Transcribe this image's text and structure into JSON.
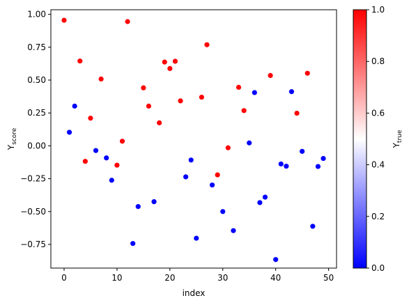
{
  "chart_data": {
    "type": "scatter",
    "xlabel": "index",
    "ylabel": "Y",
    "ylabel_subscript": "score",
    "colorbar_label": "Y",
    "colorbar_label_subscript": "true",
    "xlim": [
      -2.5,
      51.5
    ],
    "ylim": [
      -0.93,
      1.035
    ],
    "xticks": [
      0,
      10,
      20,
      30,
      40,
      50
    ],
    "yticks": [
      -0.75,
      -0.5,
      -0.25,
      0.0,
      0.25,
      0.5,
      0.75,
      1.0
    ],
    "ytick_labels": [
      "−0.75",
      "−0.50",
      "−0.25",
      "0.00",
      "0.25",
      "0.50",
      "0.75",
      "1.00"
    ],
    "colorbar_ticks": [
      0.0,
      0.2,
      0.4,
      0.6,
      0.8,
      1.0
    ],
    "colorbar_tick_labels": [
      "0.0",
      "0.2",
      "0.4",
      "0.6",
      "0.8",
      "1.0"
    ],
    "colormap": [
      "#0000ff",
      "#ffffff",
      "#ff0000"
    ],
    "colors": {
      "class0": "#0000ff",
      "class1": "#ff0000"
    },
    "grid": false,
    "points": [
      {
        "x": 0,
        "y": 0.955,
        "c": 1
      },
      {
        "x": 1,
        "y": 0.103,
        "c": 0
      },
      {
        "x": 2,
        "y": 0.302,
        "c": 0
      },
      {
        "x": 3,
        "y": 0.645,
        "c": 1
      },
      {
        "x": 4,
        "y": -0.118,
        "c": 1
      },
      {
        "x": 5,
        "y": 0.21,
        "c": 1
      },
      {
        "x": 6,
        "y": -0.036,
        "c": 0
      },
      {
        "x": 7,
        "y": 0.508,
        "c": 1
      },
      {
        "x": 8,
        "y": -0.092,
        "c": 0
      },
      {
        "x": 9,
        "y": -0.262,
        "c": 0
      },
      {
        "x": 10,
        "y": -0.147,
        "c": 1
      },
      {
        "x": 11,
        "y": 0.035,
        "c": 1
      },
      {
        "x": 12,
        "y": 0.945,
        "c": 1
      },
      {
        "x": 13,
        "y": -0.743,
        "c": 0
      },
      {
        "x": 14,
        "y": -0.462,
        "c": 0
      },
      {
        "x": 15,
        "y": 0.441,
        "c": 1
      },
      {
        "x": 16,
        "y": 0.302,
        "c": 1
      },
      {
        "x": 17,
        "y": -0.425,
        "c": 0
      },
      {
        "x": 18,
        "y": 0.175,
        "c": 1
      },
      {
        "x": 19,
        "y": 0.637,
        "c": 1
      },
      {
        "x": 20,
        "y": 0.588,
        "c": 1
      },
      {
        "x": 21,
        "y": 0.643,
        "c": 1
      },
      {
        "x": 22,
        "y": 0.342,
        "c": 1
      },
      {
        "x": 23,
        "y": -0.236,
        "c": 0
      },
      {
        "x": 24,
        "y": -0.108,
        "c": 0
      },
      {
        "x": 25,
        "y": -0.703,
        "c": 0
      },
      {
        "x": 26,
        "y": 0.37,
        "c": 1
      },
      {
        "x": 27,
        "y": 0.769,
        "c": 1
      },
      {
        "x": 28,
        "y": -0.298,
        "c": 0
      },
      {
        "x": 29,
        "y": -0.221,
        "c": 1
      },
      {
        "x": 30,
        "y": -0.5,
        "c": 0
      },
      {
        "x": 31,
        "y": -0.015,
        "c": 1
      },
      {
        "x": 32,
        "y": -0.645,
        "c": 0
      },
      {
        "x": 33,
        "y": 0.445,
        "c": 1
      },
      {
        "x": 34,
        "y": 0.268,
        "c": 1
      },
      {
        "x": 35,
        "y": 0.022,
        "c": 0
      },
      {
        "x": 36,
        "y": 0.405,
        "c": 0
      },
      {
        "x": 37,
        "y": -0.432,
        "c": 0
      },
      {
        "x": 38,
        "y": -0.39,
        "c": 0
      },
      {
        "x": 39,
        "y": 0.535,
        "c": 1
      },
      {
        "x": 40,
        "y": -0.865,
        "c": 0
      },
      {
        "x": 41,
        "y": -0.138,
        "c": 0
      },
      {
        "x": 42,
        "y": -0.155,
        "c": 0
      },
      {
        "x": 43,
        "y": 0.412,
        "c": 0
      },
      {
        "x": 44,
        "y": 0.248,
        "c": 1
      },
      {
        "x": 45,
        "y": -0.042,
        "c": 0
      },
      {
        "x": 46,
        "y": 0.552,
        "c": 1
      },
      {
        "x": 47,
        "y": -0.612,
        "c": 0
      },
      {
        "x": 48,
        "y": -0.157,
        "c": 0
      },
      {
        "x": 49,
        "y": -0.096,
        "c": 0
      }
    ]
  }
}
